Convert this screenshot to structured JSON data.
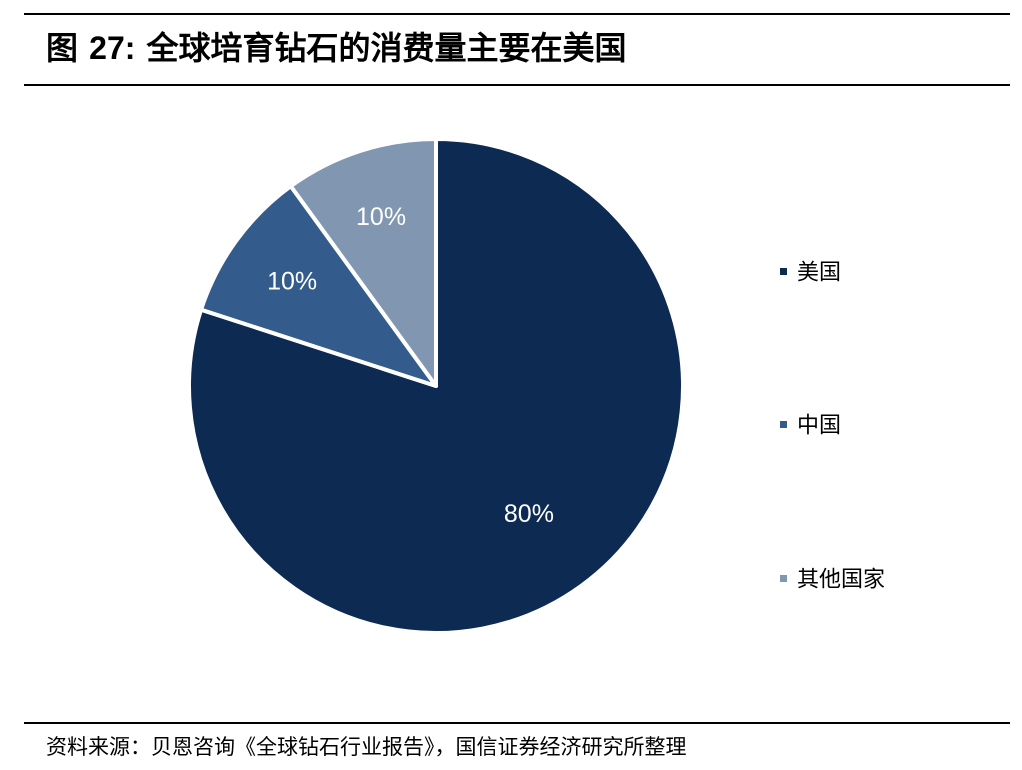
{
  "figure_label": "图",
  "figure_number": "27:",
  "title": "全球培育钻石的消费量主要在美国",
  "source": "资料来源：贝恩咨询《全球钻石行业报告》，国信证券经济研究所整理",
  "chart_data": {
    "type": "pie",
    "slices": [
      {
        "label": "美国",
        "value": 80,
        "display": "80%",
        "color": "#0c2a52"
      },
      {
        "label": "中国",
        "value": 10,
        "display": "10%",
        "color": "#335c8c"
      },
      {
        "label": "其他国家",
        "value": 10,
        "display": "10%",
        "color": "#8196b0"
      }
    ],
    "start": "12 o'clock, clockwise",
    "legend_position": "right",
    "label_color": "#ffffff"
  }
}
